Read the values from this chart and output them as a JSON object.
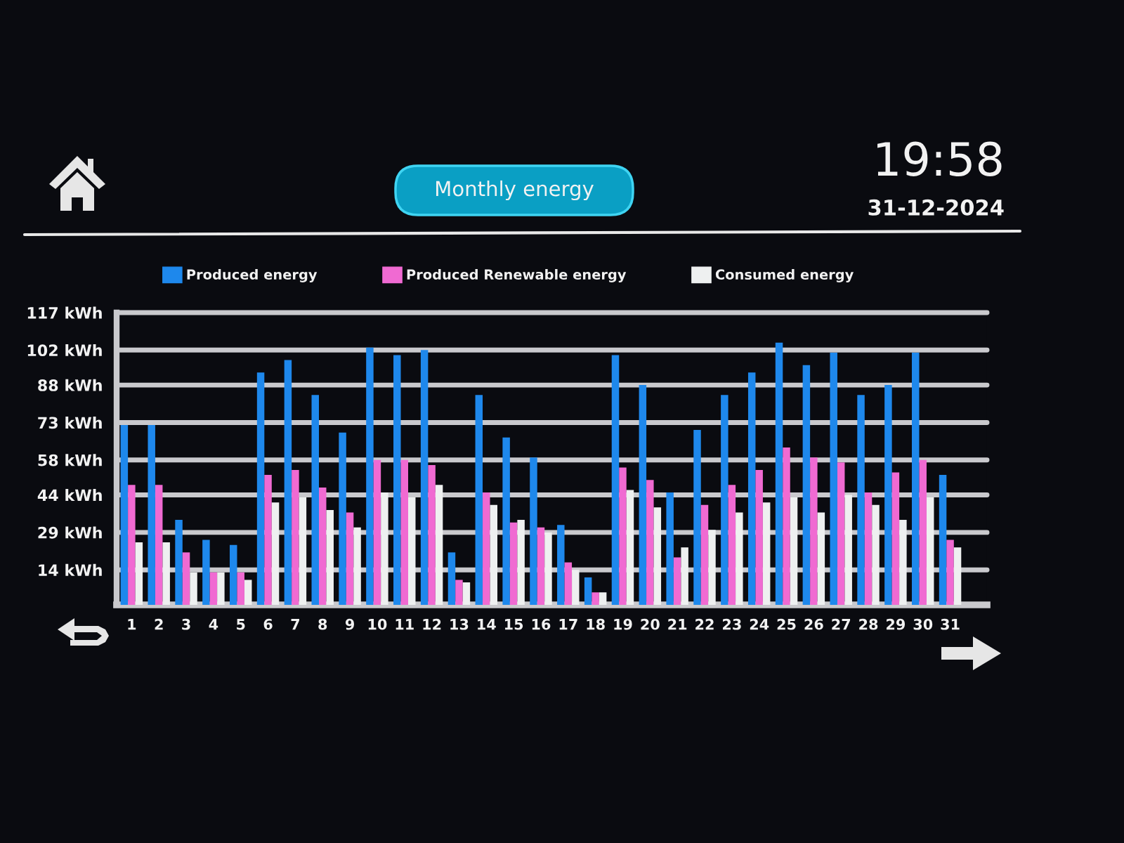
{
  "chart_data": {
    "type": "bar",
    "title": "Monthly energy",
    "annotations": [
      "19:58",
      "31-12-2024"
    ],
    "categories": [
      "1",
      "2",
      "3",
      "4",
      "5",
      "6",
      "7",
      "8",
      "9",
      "10",
      "11",
      "12",
      "13",
      "14",
      "15",
      "16",
      "17",
      "18",
      "19",
      "20",
      "21",
      "22",
      "23",
      "24",
      "25",
      "26",
      "27",
      "28",
      "29",
      "30",
      "31"
    ],
    "series": [
      {
        "name": "Produced energy",
        "color": "#1e88ec",
        "values": [
          72,
          72,
          34,
          26,
          24,
          93,
          98,
          84,
          69,
          103,
          100,
          102,
          21,
          84,
          67,
          59,
          32,
          11,
          100,
          88,
          45,
          70,
          84,
          93,
          105,
          96,
          101,
          84,
          88,
          101,
          52
        ]
      },
      {
        "name": "Produced Renewable energy",
        "color": "#f06ad2",
        "values": [
          48,
          48,
          21,
          13,
          13,
          52,
          54,
          47,
          37,
          58,
          58,
          56,
          10,
          45,
          33,
          31,
          17,
          5,
          55,
          50,
          19,
          40,
          48,
          54,
          63,
          59,
          57,
          45,
          53,
          58,
          26
        ]
      },
      {
        "name": "Consumed energy",
        "color": "#eef0f0",
        "values": [
          25,
          25,
          13,
          13,
          10,
          41,
          43,
          38,
          31,
          45,
          43,
          48,
          9,
          40,
          34,
          29,
          14,
          5,
          46,
          39,
          23,
          30,
          37,
          41,
          43,
          37,
          44,
          40,
          34,
          43,
          23
        ]
      }
    ],
    "ylim": [
      0,
      117
    ],
    "yticks": [
      {
        "value": 14,
        "label": "14 kWh"
      },
      {
        "value": 29,
        "label": "29 kWh"
      },
      {
        "value": 44,
        "label": "44 kWh"
      },
      {
        "value": 58,
        "label": "58 kWh"
      },
      {
        "value": 73,
        "label": "73 kWh"
      },
      {
        "value": 88,
        "label": "88 kWh"
      },
      {
        "value": 102,
        "label": "102 kWh"
      },
      {
        "value": 117,
        "label": "117 kWh"
      }
    ],
    "grid": "y",
    "legend": "top"
  }
}
